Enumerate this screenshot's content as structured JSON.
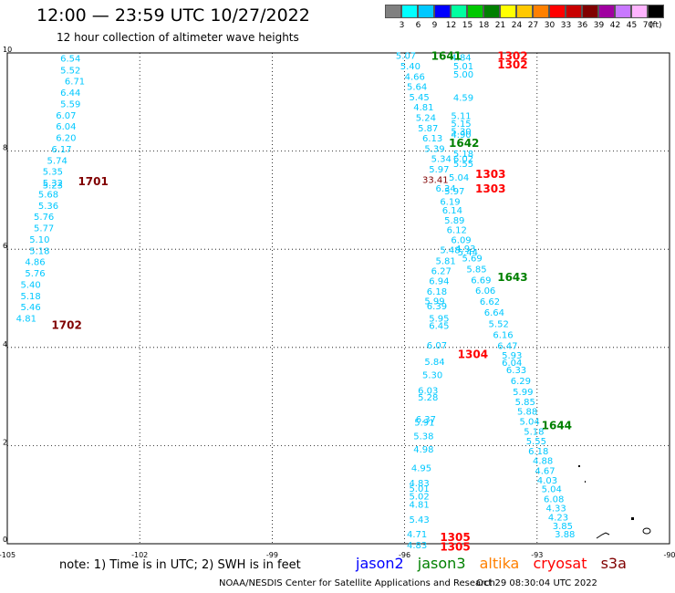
{
  "header": {
    "title": "12:00 — 23:59 UTC 10/27/2022",
    "subtitle": "12 hour collection of altimeter wave heights"
  },
  "legend": {
    "labels": [
      "3",
      "6",
      "9",
      "12",
      "15",
      "18",
      "21",
      "24",
      "27",
      "30",
      "33",
      "36",
      "39",
      "42",
      "45",
      "70"
    ],
    "unit": "(ft)",
    "colors": [
      "#808080",
      "#00ffff",
      "#00c8ff",
      "#0000ff",
      "#00ffa0",
      "#00c800",
      "#008000",
      "#ffff00",
      "#ffc800",
      "#ff8000",
      "#ff0000",
      "#c80000",
      "#800000",
      "#a000a0",
      "#c878ff",
      "#ffb4ff",
      "#000000"
    ]
  },
  "axes": {
    "x_ticks": [
      "-105",
      "-102",
      "-99",
      "-96",
      "-93",
      "-90"
    ],
    "y_ticks": [
      "0",
      "2",
      "4",
      "6",
      "8",
      "10"
    ]
  },
  "colors": {
    "wave": "#00c8ff",
    "jason2": "#0000ff",
    "jason3": "#008000",
    "altika": "#ff8000",
    "cryosat": "#ff0000",
    "s3a": "#800000"
  },
  "note": "note: 1) Time is in UTC; 2) SWH is in feet",
  "satellites": [
    "jason2",
    "jason3",
    "altika",
    "cryosat",
    "s3a"
  ],
  "footer": {
    "left": "NOAA/NESDIS Center for Satellite Applications and Research",
    "right": "Oct 29 08:30:04 UTC 2022"
  },
  "track_labels": [
    {
      "text": "1641",
      "lon": -95.4,
      "lat": 9.95,
      "sat": "jason3"
    },
    {
      "text": "1302",
      "lon": -93.9,
      "lat": 9.95,
      "sat": "cryosat"
    },
    {
      "text": "1302",
      "lon": -93.9,
      "lat": 9.78,
      "sat": "cryosat"
    },
    {
      "text": "1642",
      "lon": -95.0,
      "lat": 8.18,
      "sat": "jason3"
    },
    {
      "text": "1303",
      "lon": -94.4,
      "lat": 7.55,
      "sat": "cryosat"
    },
    {
      "text": "1303",
      "lon": -94.4,
      "lat": 7.25,
      "sat": "cryosat"
    },
    {
      "text": "1701",
      "lon": -103.4,
      "lat": 7.4,
      "sat": "s3a"
    },
    {
      "text": "1643",
      "lon": -93.9,
      "lat": 5.45,
      "sat": "jason3"
    },
    {
      "text": "1702",
      "lon": -104.0,
      "lat": 4.47,
      "sat": "s3a"
    },
    {
      "text": "1304",
      "lon": -94.8,
      "lat": 3.88,
      "sat": "cryosat"
    },
    {
      "text": "1644",
      "lon": -92.9,
      "lat": 2.43,
      "sat": "jason3"
    },
    {
      "text": "1305",
      "lon": -95.2,
      "lat": 0.15,
      "sat": "cryosat"
    },
    {
      "text": "1305",
      "lon": -95.2,
      "lat": -0.05,
      "sat": "cryosat"
    }
  ],
  "wave_heights": [
    {
      "v": "6.54",
      "lon": -103.8,
      "lat": 9.9
    },
    {
      "v": "5.52",
      "lon": -103.8,
      "lat": 9.66
    },
    {
      "v": "6.71",
      "lon": -103.7,
      "lat": 9.43
    },
    {
      "v": "6.44",
      "lon": -103.8,
      "lat": 9.2
    },
    {
      "v": "5.59",
      "lon": -103.8,
      "lat": 8.97
    },
    {
      "v": "6.07",
      "lon": -103.9,
      "lat": 8.74
    },
    {
      "v": "6.04",
      "lon": -103.9,
      "lat": 8.51
    },
    {
      "v": "6.20",
      "lon": -103.9,
      "lat": 8.28
    },
    {
      "v": "6.17",
      "lon": -104.0,
      "lat": 8.05
    },
    {
      "v": "5.74",
      "lon": -104.1,
      "lat": 7.82
    },
    {
      "v": "5.35",
      "lon": -104.2,
      "lat": 7.59
    },
    {
      "v": "5.32",
      "lon": -104.2,
      "lat": 7.36
    },
    {
      "v": "5.23",
      "lon": -104.2,
      "lat": 7.31
    },
    {
      "v": "5.68",
      "lon": -104.3,
      "lat": 7.13
    },
    {
      "v": "5.36",
      "lon": -104.3,
      "lat": 6.9
    },
    {
      "v": "5.76",
      "lon": -104.4,
      "lat": 6.67
    },
    {
      "v": "5.77",
      "lon": -104.4,
      "lat": 6.44
    },
    {
      "v": "5.10",
      "lon": -104.5,
      "lat": 6.21
    },
    {
      "v": "5.18",
      "lon": -104.5,
      "lat": 5.98
    },
    {
      "v": "4.86",
      "lon": -104.6,
      "lat": 5.75
    },
    {
      "v": "5.76",
      "lon": -104.6,
      "lat": 5.52
    },
    {
      "v": "5.40",
      "lon": -104.7,
      "lat": 5.29
    },
    {
      "v": "5.18",
      "lon": -104.7,
      "lat": 5.06
    },
    {
      "v": "5.46",
      "lon": -104.7,
      "lat": 4.83
    },
    {
      "v": "4.81",
      "lon": -104.8,
      "lat": 4.6
    },
    {
      "v": "5.07",
      "lon": -96.2,
      "lat": 9.95
    },
    {
      "v": "5.40",
      "lon": -96.1,
      "lat": 9.74
    },
    {
      "v": "4.66",
      "lon": -96.0,
      "lat": 9.53
    },
    {
      "v": "5.64",
      "lon": -95.95,
      "lat": 9.32
    },
    {
      "v": "5.45",
      "lon": -95.9,
      "lat": 9.11
    },
    {
      "v": "4.81",
      "lon": -95.8,
      "lat": 8.9
    },
    {
      "v": "5.24",
      "lon": -95.75,
      "lat": 8.69
    },
    {
      "v": "5.87",
      "lon": -95.7,
      "lat": 8.48
    },
    {
      "v": "6.13",
      "lon": -95.6,
      "lat": 8.27
    },
    {
      "v": "5.39",
      "lon": -95.55,
      "lat": 8.06
    },
    {
      "v": "5.34",
      "lon": -95.4,
      "lat": 7.85
    },
    {
      "v": "5.97",
      "lon": -95.45,
      "lat": 7.64
    },
    {
      "v": "33.41",
      "lon": -95.6,
      "lat": 7.43
    },
    {
      "v": "6.34",
      "lon": -95.3,
      "lat": 7.25
    },
    {
      "v": "6.19",
      "lon": -95.2,
      "lat": 6.98
    },
    {
      "v": "6.14",
      "lon": -95.15,
      "lat": 6.8
    },
    {
      "v": "5.89",
      "lon": -95.1,
      "lat": 6.6
    },
    {
      "v": "6.12",
      "lon": -95.05,
      "lat": 6.4
    },
    {
      "v": "6.09",
      "lon": -94.95,
      "lat": 6.2
    },
    {
      "v": "5.48",
      "lon": -95.2,
      "lat": 5.99
    },
    {
      "v": "5.81",
      "lon": -95.3,
      "lat": 5.77
    },
    {
      "v": "6.27",
      "lon": -95.4,
      "lat": 5.57
    },
    {
      "v": "6.94",
      "lon": -95.45,
      "lat": 5.36
    },
    {
      "v": "6.18",
      "lon": -95.5,
      "lat": 5.15
    },
    {
      "v": "5.99",
      "lon": -95.55,
      "lat": 4.95
    },
    {
      "v": "6.39",
      "lon": -95.5,
      "lat": 4.85
    },
    {
      "v": "5.95",
      "lon": -95.45,
      "lat": 4.6
    },
    {
      "v": "6.45",
      "lon": -95.45,
      "lat": 4.45
    },
    {
      "v": "6.07",
      "lon": -95.5,
      "lat": 4.05
    },
    {
      "v": "5.84",
      "lon": -95.55,
      "lat": 3.72
    },
    {
      "v": "5.30",
      "lon": -95.6,
      "lat": 3.45
    },
    {
      "v": "6.03",
      "lon": -95.7,
      "lat": 3.13
    },
    {
      "v": "5.28",
      "lon": -95.7,
      "lat": 2.99
    },
    {
      "v": "6.37",
      "lon": -95.75,
      "lat": 2.55
    },
    {
      "v": "5.91",
      "lon": -95.78,
      "lat": 2.48
    },
    {
      "v": "5.38",
      "lon": -95.8,
      "lat": 2.2
    },
    {
      "v": "4.98",
      "lon": -95.8,
      "lat": 1.93
    },
    {
      "v": "4.95",
      "lon": -95.85,
      "lat": 1.55
    },
    {
      "v": "4.83",
      "lon": -95.9,
      "lat": 1.25
    },
    {
      "v": "5.01",
      "lon": -95.9,
      "lat": 1.13
    },
    {
      "v": "5.02",
      "lon": -95.9,
      "lat": 0.98
    },
    {
      "v": "4.81",
      "lon": -95.9,
      "lat": 0.81
    },
    {
      "v": "5.43",
      "lon": -95.9,
      "lat": 0.5
    },
    {
      "v": "4.71",
      "lon": -95.95,
      "lat": 0.2
    },
    {
      "v": "4.83",
      "lon": -95.95,
      "lat": -0.02
    },
    {
      "v": "4.84",
      "lon": -94.95,
      "lat": 9.92
    },
    {
      "v": "5.01",
      "lon": -94.9,
      "lat": 9.74
    },
    {
      "v": "5.00",
      "lon": -94.9,
      "lat": 9.57
    },
    {
      "v": "4.59",
      "lon": -94.9,
      "lat": 9.1
    },
    {
      "v": "5.11",
      "lon": -94.95,
      "lat": 8.73
    },
    {
      "v": "5.15",
      "lon": -94.95,
      "lat": 8.57
    },
    {
      "v": "5.30",
      "lon": -94.95,
      "lat": 8.41
    },
    {
      "v": "4.90",
      "lon": -94.95,
      "lat": 8.35
    },
    {
      "v": "5.18",
      "lon": -94.9,
      "lat": 7.96
    },
    {
      "v": "6.02",
      "lon": -94.9,
      "lat": 7.85
    },
    {
      "v": "5.55",
      "lon": -94.9,
      "lat": 7.75
    },
    {
      "v": "5.04",
      "lon": -95.0,
      "lat": 7.47
    },
    {
      "v": "5.97",
      "lon": -95.1,
      "lat": 7.19
    },
    {
      "v": "4.93",
      "lon": -94.85,
      "lat": 6.02
    },
    {
      "v": "5.44",
      "lon": -94.8,
      "lat": 5.95
    },
    {
      "v": "5.69",
      "lon": -94.7,
      "lat": 5.83
    },
    {
      "v": "5.85",
      "lon": -94.6,
      "lat": 5.6
    },
    {
      "v": "6.69",
      "lon": -94.5,
      "lat": 5.38
    },
    {
      "v": "6.06",
      "lon": -94.4,
      "lat": 5.17
    },
    {
      "v": "6.62",
      "lon": -94.3,
      "lat": 4.94
    },
    {
      "v": "6.64",
      "lon": -94.2,
      "lat": 4.72
    },
    {
      "v": "5.52",
      "lon": -94.1,
      "lat": 4.49
    },
    {
      "v": "6.16",
      "lon": -94.0,
      "lat": 4.27
    },
    {
      "v": "6.47",
      "lon": -93.9,
      "lat": 4.04
    },
    {
      "v": "5.93",
      "lon": -93.8,
      "lat": 3.85
    },
    {
      "v": "6.04",
      "lon": -93.8,
      "lat": 3.7
    },
    {
      "v": "6.33",
      "lon": -93.7,
      "lat": 3.55
    },
    {
      "v": "6.29",
      "lon": -93.6,
      "lat": 3.33
    },
    {
      "v": "5.99",
      "lon": -93.55,
      "lat": 3.1
    },
    {
      "v": "5.85",
      "lon": -93.5,
      "lat": 2.9
    },
    {
      "v": "5.88",
      "lon": -93.45,
      "lat": 2.7
    },
    {
      "v": "5.04",
      "lon": -93.4,
      "lat": 2.5
    },
    {
      "v": "5.18",
      "lon": -93.3,
      "lat": 2.3
    },
    {
      "v": "5.55",
      "lon": -93.25,
      "lat": 2.1
    },
    {
      "v": "6.18",
      "lon": -93.2,
      "lat": 1.9
    },
    {
      "v": "4.88",
      "lon": -93.1,
      "lat": 1.7
    },
    {
      "v": "4.67",
      "lon": -93.05,
      "lat": 1.5
    },
    {
      "v": "4.03",
      "lon": -93.0,
      "lat": 1.3
    },
    {
      "v": "5.04",
      "lon": -92.9,
      "lat": 1.12
    },
    {
      "v": "6.08",
      "lon": -92.85,
      "lat": 0.92
    },
    {
      "v": "4.33",
      "lon": -92.8,
      "lat": 0.73
    },
    {
      "v": "4.23",
      "lon": -92.75,
      "lat": 0.55
    },
    {
      "v": "3.85",
      "lon": -92.65,
      "lat": 0.37
    },
    {
      "v": "3.88",
      "lon": -92.6,
      "lat": 0.2
    }
  ]
}
